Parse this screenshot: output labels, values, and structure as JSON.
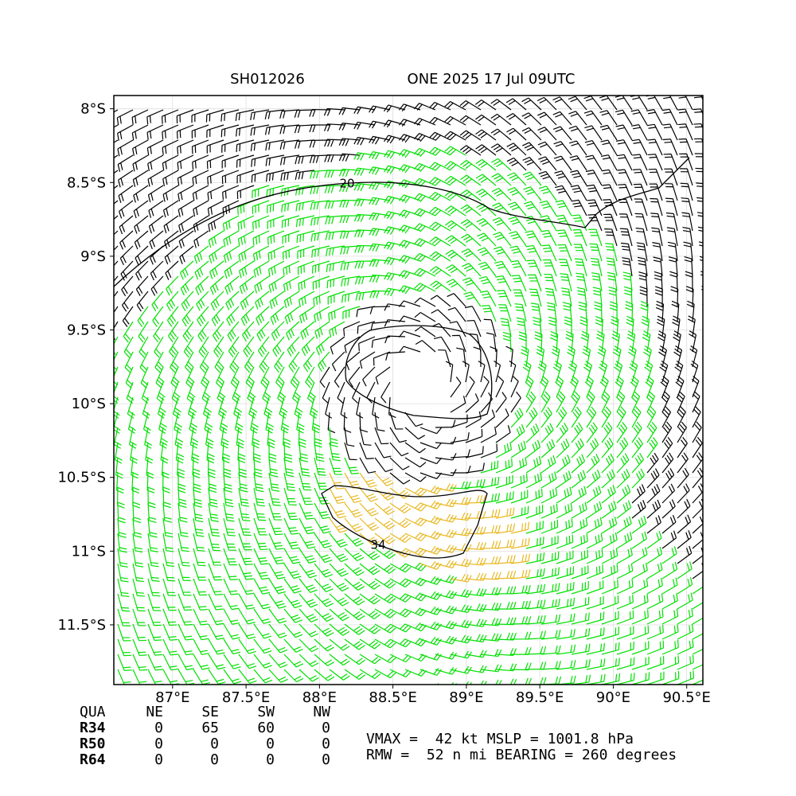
{
  "map": {
    "title_left": "SH012026",
    "title_right": "ONE 2025 17 Jul 09UTC",
    "xlim": [
      86.6,
      90.61
    ],
    "ylim": [
      -11.905,
      -7.91
    ],
    "xticks": [
      {
        "value": 87,
        "label": "87°E"
      },
      {
        "value": 87.5,
        "label": "87.5°E"
      },
      {
        "value": 88,
        "label": "88°E"
      },
      {
        "value": 88.5,
        "label": "88.5°E"
      },
      {
        "value": 89,
        "label": "89°E"
      },
      {
        "value": 89.5,
        "label": "89.5°E"
      },
      {
        "value": 90,
        "label": "90°E"
      },
      {
        "value": 90.5,
        "label": "90.5°E"
      }
    ],
    "yticks": [
      {
        "value": -8,
        "label": "8°S"
      },
      {
        "value": -8.5,
        "label": "8.5°S"
      },
      {
        "value": -9,
        "label": "9°S"
      },
      {
        "value": -9.5,
        "label": "9.5°S"
      },
      {
        "value": -10,
        "label": "10°S"
      },
      {
        "value": -10.5,
        "label": "10.5°S"
      },
      {
        "value": -11,
        "label": "11°S"
      },
      {
        "value": -11.5,
        "label": "11.5°S"
      }
    ],
    "contour_labels": [
      "20",
      "34"
    ]
  },
  "table": {
    "header": [
      "QUA",
      "NE",
      "SE",
      "SW",
      "NW"
    ],
    "rows": [
      [
        "R34",
        "0",
        "65",
        "60",
        "0"
      ],
      [
        "R50",
        "0",
        "0",
        "0",
        "0"
      ],
      [
        "R64",
        "0",
        "0",
        "0",
        "0"
      ]
    ]
  },
  "info": [
    "VMAX =  42 kt MSLP = 1001.8 hPa",
    "RMW =  52 n mi BEARING = 260 degrees"
  ]
}
